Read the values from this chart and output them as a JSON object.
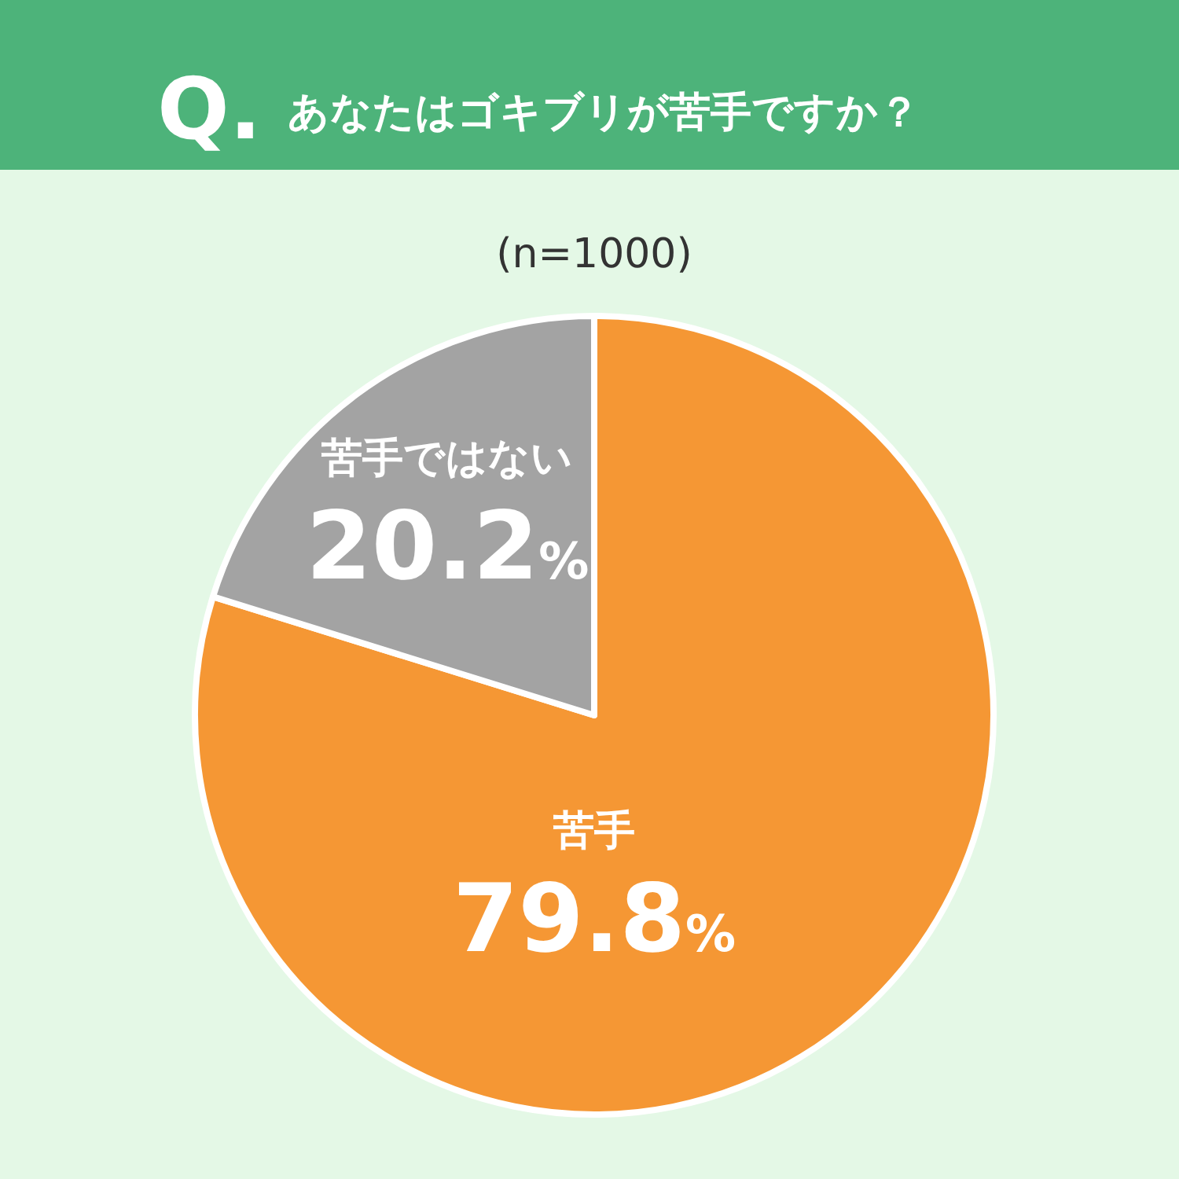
{
  "chart_data": {
    "type": "pie",
    "title": "あなたはゴキブリが苦手ですか？",
    "annotations": [
      "Q.",
      "(n=1000)"
    ],
    "categories": [
      "苦手",
      "苦手ではない"
    ],
    "values": [
      79.8,
      20.2
    ],
    "colors": [
      "#f59734",
      "#a3a3a3"
    ],
    "value_labels": [
      "79.8%",
      "20.2%"
    ]
  }
}
